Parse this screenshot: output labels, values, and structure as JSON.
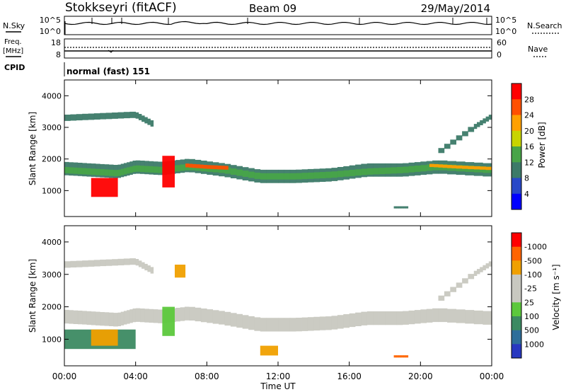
{
  "header": {
    "station": "Stokkseyri (fitACF)",
    "beam": "Beam 09",
    "date": "29/May/2014"
  },
  "noise_panel": {
    "left_label": "N.Sky",
    "right_label": "N.Search",
    "left_ticks": [
      "10^5",
      "10^0"
    ],
    "right_ticks": [
      "10^5",
      "10^0"
    ]
  },
  "freq_panel": {
    "left_label_1": "Freq.",
    "left_label_2": "[MHz]",
    "right_label": "Nave",
    "left_ticks": [
      "18",
      "8"
    ],
    "right_ticks": [
      "60",
      "0"
    ]
  },
  "cpid_panel": {
    "label": "CPID",
    "value": "normal (fast) 151"
  },
  "power_colorbar": {
    "title": "Power [dB]",
    "levels": [
      "4",
      "8",
      "12",
      "16",
      "20",
      "24",
      "28"
    ],
    "colors": [
      "#0000ff",
      "#2848c8",
      "#3c7a68",
      "#48a448",
      "#c8d400",
      "#ffa000",
      "#ff5000",
      "#ff0000"
    ]
  },
  "velocity_colorbar": {
    "title": "Velocity [m s⁻¹]",
    "levels": [
      "1000",
      "500",
      "100",
      "25",
      "-25",
      "-100",
      "-500",
      "-1000"
    ],
    "colors": [
      "#2838c0",
      "#2e6e9a",
      "#3c8a62",
      "#5cc83c",
      "#c8c8c0",
      "#c8c8c0",
      "#f0a000",
      "#ff6400",
      "#ff0000"
    ]
  },
  "chart_data": [
    {
      "type": "heatmap",
      "name": "power",
      "ylabel": "Slant Range [km]",
      "xlabel": "Time UT",
      "x_ticks": [
        "00:00",
        "04:00",
        "08:00",
        "12:00",
        "16:00",
        "20:00",
        "00:00"
      ],
      "y_ticks": [
        "1000",
        "2000",
        "3000",
        "4000"
      ],
      "xlim": [
        0,
        24
      ],
      "ylim": [
        180,
        4500
      ],
      "layers": [
        {
          "x": [
            0.0,
            1.5,
            3.0,
            4.0,
            5.5,
            7.0,
            9.0,
            11.0,
            13.0,
            15.0,
            17.0,
            19.0,
            21.0,
            24.0
          ],
          "y": [
            1700,
            1650,
            1600,
            1750,
            1700,
            1800,
            1650,
            1450,
            1450,
            1500,
            1650,
            1650,
            1750,
            1650
          ],
          "width": 420,
          "value": 8
        },
        {
          "x": [
            0.0,
            1.5,
            3.0,
            4.0,
            5.5,
            7.0,
            9.0,
            11.0,
            13.0,
            15.0,
            17.0,
            19.0,
            21.0,
            24.0
          ],
          "y": [
            1650,
            1600,
            1550,
            1700,
            1650,
            1750,
            1650,
            1450,
            1450,
            1500,
            1600,
            1650,
            1750,
            1650
          ],
          "width": 200,
          "value": 14
        },
        {
          "x": [
            6.8,
            8.0,
            9.2
          ],
          "y": [
            1800,
            1750,
            1720
          ],
          "width": 120,
          "value": 24
        },
        {
          "x": [
            20.5,
            22.0,
            24.0
          ],
          "y": [
            1800,
            1750,
            1700
          ],
          "width": 100,
          "value": 22
        },
        {
          "x": [
            0.0,
            2.0,
            4.0,
            5.0
          ],
          "y": [
            3300,
            3350,
            3400,
            3100
          ],
          "width": 200,
          "value": 8
        },
        {
          "x": [
            21.0,
            23.0,
            24.0
          ],
          "y": [
            2200,
            3000,
            3350
          ],
          "width": 160,
          "value": 8
        },
        {
          "x": [
            18.5,
            19.3
          ],
          "y": [
            470,
            470
          ],
          "width": 70,
          "value": 8
        }
      ],
      "patches": [
        {
          "x0": 1.5,
          "x1": 3.0,
          "y0": 800,
          "y1": 1400,
          "value": 28
        },
        {
          "x0": 5.5,
          "x1": 6.2,
          "y0": 1100,
          "y1": 2100,
          "value": 28
        }
      ]
    },
    {
      "type": "heatmap",
      "name": "velocity",
      "ylabel": "Slant Range [km]",
      "xlabel": "Time UT",
      "x_ticks": [
        "00:00",
        "04:00",
        "08:00",
        "12:00",
        "16:00",
        "20:00",
        "00:00"
      ],
      "y_ticks": [
        "1000",
        "2000",
        "3000",
        "4000"
      ],
      "xlim": [
        0,
        24
      ],
      "ylim": [
        180,
        4500
      ],
      "layers": [
        {
          "x": [
            0.0,
            1.5,
            3.0,
            4.0,
            5.5,
            7.0,
            9.0,
            11.0,
            13.0,
            15.0,
            17.0,
            19.0,
            21.0,
            24.0
          ],
          "y": [
            1700,
            1650,
            1600,
            1750,
            1700,
            1800,
            1650,
            1450,
            1450,
            1500,
            1650,
            1650,
            1750,
            1650
          ],
          "width": 420,
          "value": 0
        },
        {
          "x": [
            0.0,
            2.0,
            4.0,
            5.0
          ],
          "y": [
            3300,
            3350,
            3400,
            3100
          ],
          "width": 200,
          "value": 0
        },
        {
          "x": [
            21.0,
            23.0,
            24.0
          ],
          "y": [
            2200,
            3000,
            3350
          ],
          "width": 160,
          "value": 0
        },
        {
          "x": [
            18.5,
            19.3
          ],
          "y": [
            470,
            470
          ],
          "width": 70,
          "value": -800
        }
      ],
      "patches": [
        {
          "x0": 0.0,
          "x1": 4.0,
          "y0": 700,
          "y1": 1300,
          "value": 300
        },
        {
          "x0": 1.5,
          "x1": 3.0,
          "y0": 800,
          "y1": 1300,
          "value": -200
        },
        {
          "x0": 5.5,
          "x1": 6.2,
          "y0": 1100,
          "y1": 2000,
          "value": 60
        },
        {
          "x0": 6.2,
          "x1": 6.8,
          "y0": 2900,
          "y1": 3300,
          "value": -300
        },
        {
          "x0": 11.0,
          "x1": 12.0,
          "y0": 500,
          "y1": 800,
          "value": -300
        }
      ]
    }
  ]
}
